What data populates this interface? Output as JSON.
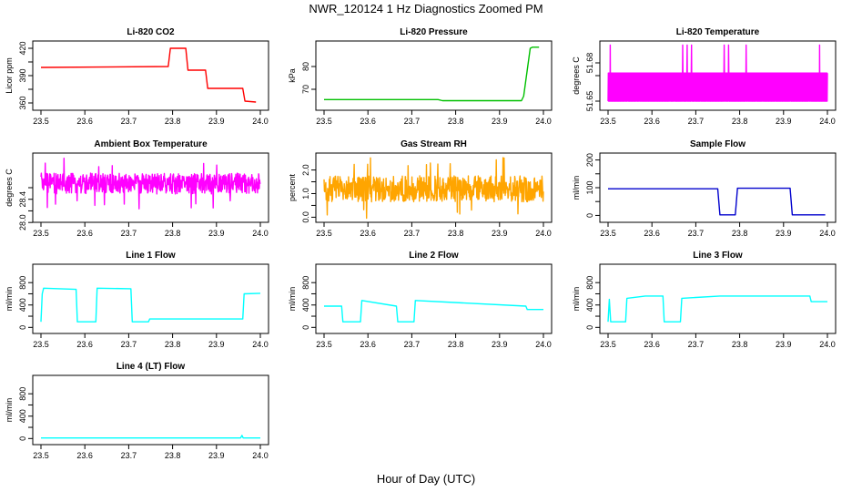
{
  "figure": {
    "title": "NWR_120124  1 Hz Diagnostics Zoomed PM",
    "xlabel": "Hour of Day (UTC)"
  },
  "chart_data": [
    {
      "type": "line",
      "title": "Li-820 CO2",
      "ylabel": "Licor ppm",
      "color": "#ff0000",
      "xlim": [
        23.5,
        24.0
      ],
      "ylim": [
        355,
        425
      ],
      "xticks": [
        "23.5",
        "23.6",
        "23.7",
        "23.8",
        "23.9",
        "24.0"
      ],
      "yticks": [
        "360",
        "390",
        "420"
      ],
      "yticks_minor": [
        "375",
        "405"
      ],
      "x": [
        23.5,
        23.79,
        23.795,
        23.83,
        23.835,
        23.875,
        23.88,
        23.96,
        23.965,
        23.99
      ],
      "y": [
        399,
        400,
        420,
        420,
        396,
        396,
        376,
        376,
        362,
        361
      ]
    },
    {
      "type": "line",
      "title": "Li-820 Pressure",
      "ylabel": "kPa",
      "color": "#00c000",
      "xlim": [
        23.5,
        24.0
      ],
      "ylim": [
        62,
        90
      ],
      "xticks": [
        "23.5",
        "23.6",
        "23.7",
        "23.8",
        "23.9",
        "24.0"
      ],
      "yticks": [
        "70",
        "80"
      ],
      "x": [
        23.5,
        23.76,
        23.77,
        23.95,
        23.955,
        23.97,
        23.975,
        23.99
      ],
      "y": [
        65.5,
        65.5,
        65,
        65,
        67,
        88,
        88.5,
        88.5
      ]
    },
    {
      "type": "line",
      "title": "Li-820 Temperature",
      "ylabel": "degrees C",
      "color": "#ff00ff",
      "xlim": [
        23.5,
        24.0
      ],
      "ylim": [
        51.645,
        51.695
      ],
      "xticks": [
        "23.5",
        "23.6",
        "23.7",
        "23.8",
        "23.9",
        "24.0"
      ],
      "yticks": [
        "51.65",
        "51.68"
      ],
      "yticks_minor": [
        "51.67"
      ],
      "levels": [
        51.65,
        51.672,
        51.694
      ],
      "spikes_x": [
        23.505,
        23.67,
        23.68,
        23.69,
        23.765,
        23.775,
        23.815,
        23.982
      ]
    },
    {
      "type": "line",
      "title": "Ambient Box Temperature",
      "ylabel": "degrees C",
      "color": "#ff00ff",
      "xlim": [
        23.5,
        24.0
      ],
      "ylim": [
        28.05,
        29.15
      ],
      "xticks": [
        "23.5",
        "23.6",
        "23.7",
        "23.8",
        "23.9",
        "24.0"
      ],
      "yticks": [
        "28.0",
        "28.4"
      ],
      "yticks_minor": [
        "28.2",
        "28.6"
      ],
      "mean": 28.67,
      "noise": 0.18
    },
    {
      "type": "line",
      "title": "Gas Stream RH",
      "ylabel": "percent",
      "color": "#ffa500",
      "xlim": [
        23.5,
        24.0
      ],
      "ylim": [
        -0.1,
        2.6
      ],
      "xticks": [
        "23.5",
        "23.6",
        "23.7",
        "23.8",
        "23.9",
        "24.0"
      ],
      "yticks": [
        "0.0",
        "1.0",
        "2.0"
      ],
      "yticks_minor": [
        "0.5",
        "1.5"
      ],
      "mean": 1.2,
      "noise": 0.55
    },
    {
      "type": "line",
      "title": "Sample Flow",
      "ylabel": "ml/min",
      "color": "#0000cd",
      "xlim": [
        23.5,
        24.0
      ],
      "ylim": [
        -15,
        215
      ],
      "xticks": [
        "23.5",
        "23.6",
        "23.7",
        "23.8",
        "23.9",
        "24.0"
      ],
      "yticks": [
        "0",
        "100",
        "200"
      ],
      "yticks_minor": [
        "50",
        "150"
      ],
      "x": [
        23.5,
        23.75,
        23.755,
        23.79,
        23.795,
        23.915,
        23.92,
        23.995
      ],
      "y": [
        96,
        96,
        2,
        2,
        98,
        98,
        2,
        2
      ]
    },
    {
      "type": "line",
      "title": "Line 1 Flow",
      "ylabel": "ml/min",
      "color": "#00ffff",
      "xlim": [
        23.5,
        24.0
      ],
      "ylim": [
        -60,
        1080
      ],
      "xticks": [
        "23.5",
        "23.6",
        "23.7",
        "23.8",
        "23.9",
        "24.0"
      ],
      "yticks": [
        "0",
        "400",
        "800"
      ],
      "yticks_minor": [
        "200",
        "600"
      ],
      "x": [
        23.5,
        23.503,
        23.506,
        23.58,
        23.583,
        23.625,
        23.628,
        23.705,
        23.708,
        23.745,
        23.748,
        23.96,
        23.963,
        24.0
      ],
      "y": [
        100,
        600,
        700,
        680,
        100,
        100,
        700,
        690,
        100,
        100,
        150,
        150,
        600,
        610
      ]
    },
    {
      "type": "line",
      "title": "Line 2 Flow",
      "ylabel": "ml/min",
      "color": "#00ffff",
      "xlim": [
        23.5,
        24.0
      ],
      "ylim": [
        -60,
        1080
      ],
      "xticks": [
        "23.5",
        "23.6",
        "23.7",
        "23.8",
        "23.9",
        "24.0"
      ],
      "yticks": [
        "0",
        "400",
        "800"
      ],
      "yticks_minor": [
        "200",
        "600"
      ],
      "x": [
        23.5,
        23.54,
        23.543,
        23.583,
        23.586,
        23.665,
        23.668,
        23.705,
        23.708,
        23.96,
        23.963,
        24.0
      ],
      "y": [
        380,
        380,
        100,
        100,
        480,
        380,
        100,
        100,
        480,
        380,
        320,
        320
      ]
    },
    {
      "type": "line",
      "title": "Line 3 Flow",
      "ylabel": "ml/min",
      "color": "#00ffff",
      "xlim": [
        23.5,
        24.0
      ],
      "ylim": [
        -60,
        1080
      ],
      "xticks": [
        "23.5",
        "23.6",
        "23.7",
        "23.8",
        "23.9",
        "24.0"
      ],
      "yticks": [
        "0",
        "400",
        "800"
      ],
      "yticks_minor": [
        "200",
        "600"
      ],
      "x": [
        23.5,
        23.503,
        23.506,
        23.54,
        23.543,
        23.585,
        23.588,
        23.625,
        23.628,
        23.665,
        23.668,
        23.755,
        23.76,
        23.96,
        23.963,
        24.0
      ],
      "y": [
        100,
        500,
        100,
        100,
        520,
        560,
        560,
        560,
        100,
        100,
        520,
        560,
        560,
        560,
        460,
        460
      ]
    },
    {
      "type": "line",
      "title": "Line 4 (LT) Flow",
      "ylabel": "ml/min",
      "color": "#00ffff",
      "xlim": [
        23.5,
        24.0
      ],
      "ylim": [
        -60,
        1080
      ],
      "xticks": [
        "23.5",
        "23.6",
        "23.7",
        "23.8",
        "23.9",
        "24.0"
      ],
      "yticks": [
        "0",
        "400",
        "800"
      ],
      "yticks_minor": [
        "200",
        "600"
      ],
      "x": [
        23.5,
        23.955,
        23.958,
        23.961,
        24.0
      ],
      "y": [
        10,
        10,
        55,
        10,
        10
      ]
    }
  ]
}
